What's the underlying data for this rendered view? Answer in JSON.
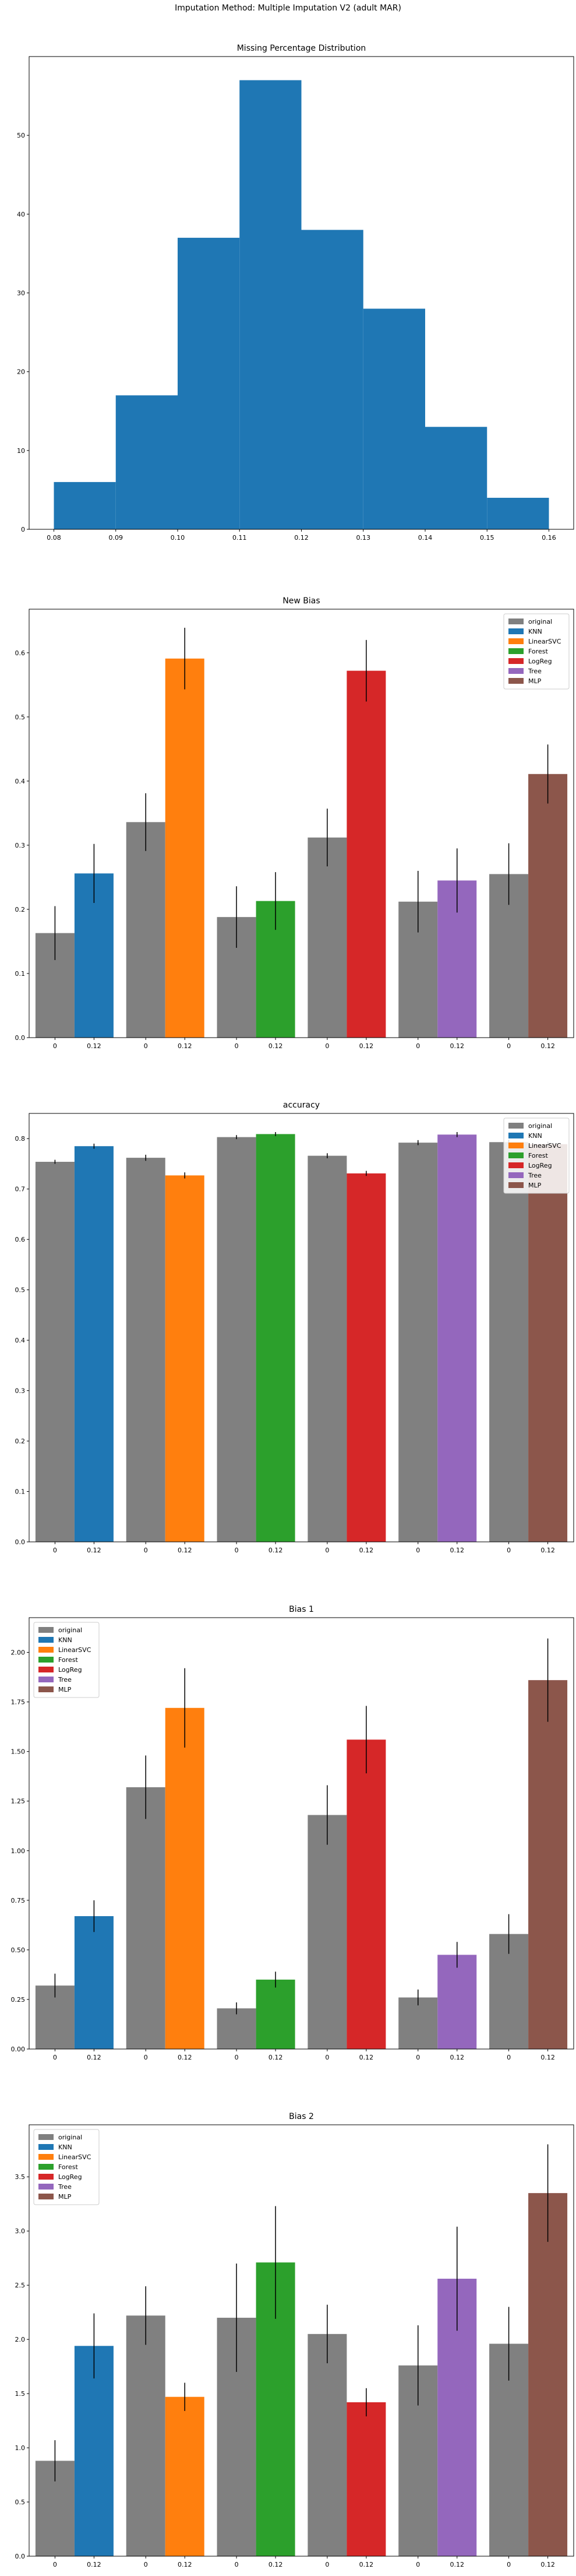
{
  "figure": {
    "suptitle": "Imputation Method: Multiple Imputation V2 (adult MAR)"
  },
  "colors": {
    "original": "#808080",
    "KNN": "#1f77b4",
    "LinearSVC": "#ff7f0e",
    "Forest": "#2ca02c",
    "LogReg": "#d62728",
    "Tree": "#9467bd",
    "MLP": "#8c564b",
    "hist": "#1f77b4",
    "error_bar": "#000000"
  },
  "chart_data": [
    {
      "type": "bar",
      "title": "Missing Percentage Distribution",
      "xlabel": "",
      "ylabel": "",
      "bin_edges": [
        0.08,
        0.09,
        0.1,
        0.11,
        0.12,
        0.13,
        0.14,
        0.15,
        0.16
      ],
      "values": [
        6,
        17,
        37,
        57,
        38,
        28,
        13,
        4
      ],
      "xlim": [
        0.076,
        0.164
      ],
      "ylim": [
        0,
        60
      ],
      "xticks": [
        "0.08",
        "0.09",
        "0.10",
        "0.11",
        "0.12",
        "0.13",
        "0.14",
        "0.15",
        "0.16"
      ],
      "yticks": [
        "0",
        "10",
        "20",
        "30",
        "40",
        "50"
      ],
      "ytick_values": [
        0,
        10,
        20,
        30,
        40,
        50
      ],
      "grid": false
    },
    {
      "type": "bar",
      "title": "New Bias",
      "xlabel": "",
      "ylabel": "",
      "group_tick_labels": [
        "0",
        "0.12"
      ],
      "groups": [
        "KNN",
        "LinearSVC",
        "Forest",
        "LogReg",
        "Tree",
        "MLP"
      ],
      "original": {
        "name": "original",
        "values": [
          0.163,
          0.336,
          0.188,
          0.312,
          0.212,
          0.255
        ],
        "errors": [
          0.042,
          0.045,
          0.048,
          0.045,
          0.048,
          0.048
        ]
      },
      "series": [
        {
          "name": "KNN",
          "value": 0.256,
          "error": 0.046
        },
        {
          "name": "LinearSVC",
          "value": 0.591,
          "error": 0.048
        },
        {
          "name": "Forest",
          "value": 0.213,
          "error": 0.045
        },
        {
          "name": "LogReg",
          "value": 0.572,
          "error": 0.048
        },
        {
          "name": "Tree",
          "value": 0.245,
          "error": 0.05
        },
        {
          "name": "MLP",
          "value": 0.411,
          "error": 0.046
        }
      ],
      "legend_entries": [
        "original",
        "KNN",
        "LinearSVC",
        "Forest",
        "LogReg",
        "Tree",
        "MLP"
      ],
      "legend_position": "top-right",
      "ylim": [
        0,
        0.668
      ],
      "yticks": [
        "0.0",
        "0.1",
        "0.2",
        "0.3",
        "0.4",
        "0.5",
        "0.6"
      ],
      "ytick_values": [
        0,
        0.1,
        0.2,
        0.3,
        0.4,
        0.5,
        0.6
      ],
      "grid": false
    },
    {
      "type": "bar",
      "title": "accuracy",
      "xlabel": "",
      "ylabel": "",
      "group_tick_labels": [
        "0",
        "0.12"
      ],
      "groups": [
        "KNN",
        "LinearSVC",
        "Forest",
        "LogReg",
        "Tree",
        "MLP"
      ],
      "original": {
        "name": "original",
        "values": [
          0.754,
          0.762,
          0.803,
          0.766,
          0.792,
          0.793
        ],
        "errors": [
          0.004,
          0.006,
          0.004,
          0.005,
          0.005,
          0.005
        ]
      },
      "series": [
        {
          "name": "KNN",
          "value": 0.785,
          "error": 0.005
        },
        {
          "name": "LinearSVC",
          "value": 0.727,
          "error": 0.006
        },
        {
          "name": "Forest",
          "value": 0.809,
          "error": 0.004
        },
        {
          "name": "LogReg",
          "value": 0.731,
          "error": 0.005
        },
        {
          "name": "Tree",
          "value": 0.808,
          "error": 0.005
        },
        {
          "name": "MLP",
          "value": 0.789,
          "error": 0.005
        }
      ],
      "legend_entries": [
        "original",
        "KNN",
        "LinearSVC",
        "Forest",
        "LogReg",
        "Tree",
        "MLP"
      ],
      "legend_position": "top-right",
      "ylim": [
        0,
        0.85
      ],
      "yticks": [
        "0.0",
        "0.1",
        "0.2",
        "0.3",
        "0.4",
        "0.5",
        "0.6",
        "0.7",
        "0.8"
      ],
      "ytick_values": [
        0,
        0.1,
        0.2,
        0.3,
        0.4,
        0.5,
        0.6,
        0.7,
        0.8
      ],
      "grid": false
    },
    {
      "type": "bar",
      "title": "Bias 1",
      "xlabel": "",
      "ylabel": "",
      "group_tick_labels": [
        "0",
        "0.12"
      ],
      "groups": [
        "KNN",
        "LinearSVC",
        "Forest",
        "LogReg",
        "Tree",
        "MLP"
      ],
      "original": {
        "name": "original",
        "values": [
          0.32,
          1.32,
          0.205,
          1.18,
          0.26,
          0.58
        ],
        "errors": [
          0.06,
          0.16,
          0.03,
          0.15,
          0.04,
          0.1
        ]
      },
      "series": [
        {
          "name": "KNN",
          "value": 0.67,
          "error": 0.08
        },
        {
          "name": "LinearSVC",
          "value": 1.72,
          "error": 0.2
        },
        {
          "name": "Forest",
          "value": 0.35,
          "error": 0.04
        },
        {
          "name": "LogReg",
          "value": 1.56,
          "error": 0.17
        },
        {
          "name": "Tree",
          "value": 0.475,
          "error": 0.065
        },
        {
          "name": "MLP",
          "value": 1.86,
          "error": 0.21
        }
      ],
      "legend_entries": [
        "original",
        "KNN",
        "LinearSVC",
        "Forest",
        "LogReg",
        "Tree",
        "MLP"
      ],
      "legend_position": "top-left",
      "ylim": [
        0,
        2.175
      ],
      "yticks": [
        "0.00",
        "0.25",
        "0.50",
        "0.75",
        "1.00",
        "1.25",
        "1.50",
        "1.75",
        "2.00"
      ],
      "ytick_values": [
        0,
        0.25,
        0.5,
        0.75,
        1.0,
        1.25,
        1.5,
        1.75,
        2.0
      ],
      "grid": false
    },
    {
      "type": "bar",
      "title": "Bias 2",
      "xlabel": "",
      "ylabel": "",
      "group_tick_labels": [
        "0",
        "0.12"
      ],
      "groups": [
        "KNN",
        "LinearSVC",
        "Forest",
        "LogReg",
        "Tree",
        "MLP"
      ],
      "original": {
        "name": "original",
        "values": [
          0.88,
          2.22,
          2.2,
          2.05,
          1.76,
          1.96
        ],
        "errors": [
          0.19,
          0.27,
          0.5,
          0.27,
          0.37,
          0.34
        ]
      },
      "series": [
        {
          "name": "KNN",
          "value": 1.94,
          "error": 0.3
        },
        {
          "name": "LinearSVC",
          "value": 1.47,
          "error": 0.13
        },
        {
          "name": "Forest",
          "value": 2.71,
          "error": 0.52
        },
        {
          "name": "LogReg",
          "value": 1.42,
          "error": 0.13
        },
        {
          "name": "Tree",
          "value": 2.56,
          "error": 0.48
        },
        {
          "name": "MLP",
          "value": 3.35,
          "error": 0.45
        }
      ],
      "legend_entries": [
        "original",
        "KNN",
        "LinearSVC",
        "Forest",
        "LogReg",
        "Tree",
        "MLP"
      ],
      "legend_position": "top-left",
      "ylim": [
        0,
        3.98
      ],
      "yticks": [
        "0.0",
        "0.5",
        "1.0",
        "1.5",
        "2.0",
        "2.5",
        "3.0",
        "3.5"
      ],
      "ytick_values": [
        0,
        0.5,
        1.0,
        1.5,
        2.0,
        2.5,
        3.0,
        3.5
      ],
      "grid": false
    }
  ]
}
